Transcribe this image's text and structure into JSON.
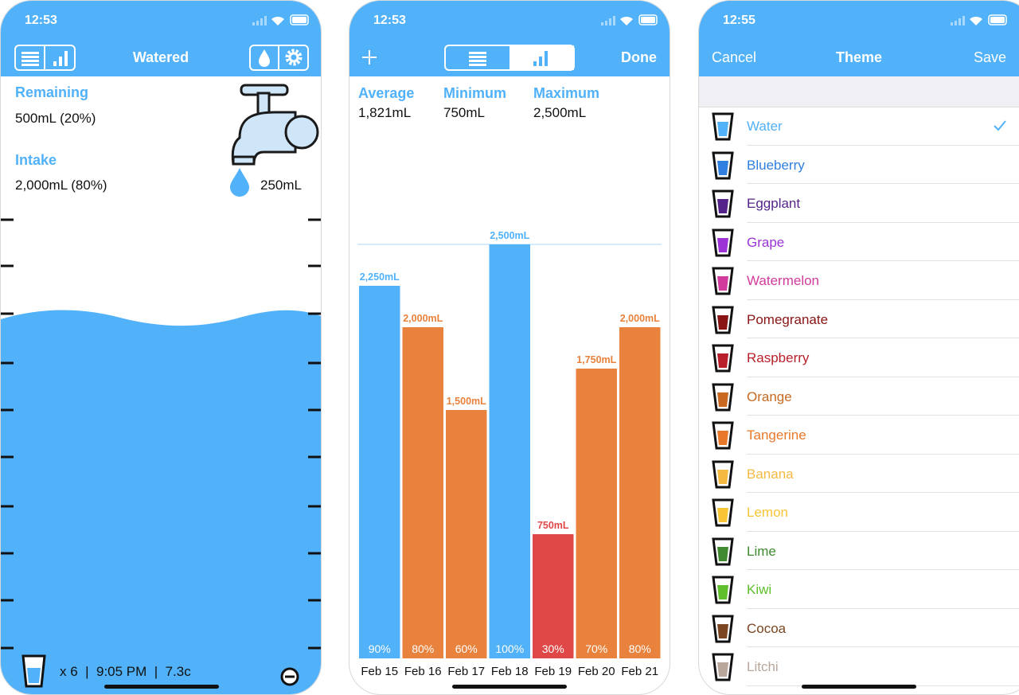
{
  "main_screen": {
    "status_time": "12:53",
    "nav_title": "Watered",
    "remaining_label": "Remaining",
    "remaining_value": "500mL (20%)",
    "intake_label": "Intake",
    "intake_value": "2,000mL (80%)",
    "serving": "250mL",
    "footer": "x 6  |  9:05 PM  |  7.3c"
  },
  "history_screen": {
    "status_time": "12:53",
    "nav_right": "Done",
    "stats": [
      {
        "label": "Average",
        "value": "1,821mL"
      },
      {
        "label": "Minimum",
        "value": "750mL"
      },
      {
        "label": "Maximum",
        "value": "2,500mL"
      }
    ],
    "chart": {
      "type": "bar",
      "ylim": [
        0,
        2500
      ],
      "bars": [
        {
          "category": "Feb 15",
          "value": 2250,
          "value_label": "2,250mL",
          "percent": "90%",
          "color": "#51b1f9"
        },
        {
          "category": "Feb 16",
          "value": 2000,
          "value_label": "2,000mL",
          "percent": "80%",
          "color": "#e8823d"
        },
        {
          "category": "Feb 17",
          "value": 1500,
          "value_label": "1,500mL",
          "percent": "60%",
          "color": "#e8823d"
        },
        {
          "category": "Feb 18",
          "value": 2500,
          "value_label": "2,500mL",
          "percent": "100%",
          "color": "#51b1f9"
        },
        {
          "category": "Feb 19",
          "value": 750,
          "value_label": "750mL",
          "percent": "30%",
          "color": "#e04848"
        },
        {
          "category": "Feb 20",
          "value": 1750,
          "value_label": "1,750mL",
          "percent": "70%",
          "color": "#e8823d"
        },
        {
          "category": "Feb 21",
          "value": 2000,
          "value_label": "2,000mL",
          "percent": "80%",
          "color": "#e8823d"
        }
      ]
    }
  },
  "theme_screen": {
    "status_time": "12:55",
    "nav_left": "Cancel",
    "nav_title": "Theme",
    "nav_right": "Save",
    "themes": [
      {
        "name": "Water",
        "color": "#51b1f9",
        "selected": true
      },
      {
        "name": "Blueberry",
        "color": "#2f7fe0",
        "selected": false
      },
      {
        "name": "Eggplant",
        "color": "#55248a",
        "selected": false
      },
      {
        "name": "Grape",
        "color": "#9b33d6",
        "selected": false
      },
      {
        "name": "Watermelon",
        "color": "#d23a9b",
        "selected": false
      },
      {
        "name": "Pomegranate",
        "color": "#8a1414",
        "selected": false
      },
      {
        "name": "Raspberry",
        "color": "#b81f2a",
        "selected": false
      },
      {
        "name": "Orange",
        "color": "#c8691f",
        "selected": false
      },
      {
        "name": "Tangerine",
        "color": "#e8782a",
        "selected": false
      },
      {
        "name": "Banana",
        "color": "#f5b942",
        "selected": false
      },
      {
        "name": "Lemon",
        "color": "#f7c535",
        "selected": false
      },
      {
        "name": "Lime",
        "color": "#3f8a2e",
        "selected": false
      },
      {
        "name": "Kiwi",
        "color": "#5fbf2c",
        "selected": false
      },
      {
        "name": "Cocoa",
        "color": "#7a4520",
        "selected": false
      },
      {
        "name": "Litchi",
        "color": "#b9a79c",
        "selected": false
      }
    ]
  }
}
